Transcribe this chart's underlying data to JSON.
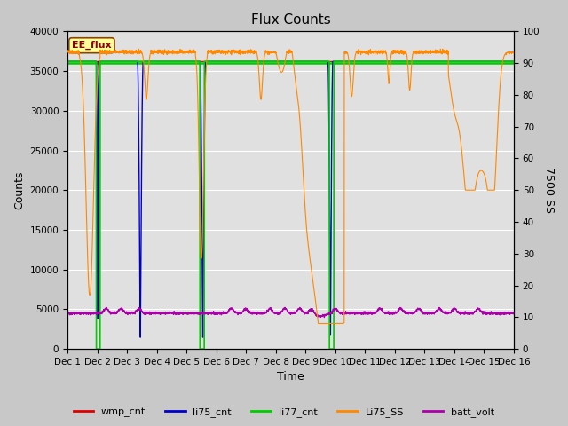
{
  "title": "Flux Counts",
  "xlabel": "Time",
  "ylabel_left": "Counts",
  "ylabel_right": "7500 SS",
  "xlim": [
    0,
    15
  ],
  "ylim_left": [
    0,
    40000
  ],
  "ylim_right": [
    0,
    100
  ],
  "x_tick_labels": [
    "Dec 1",
    "Dec 2",
    "Dec 3",
    "Dec 4",
    "Dec 5",
    "Dec 6",
    "Dec 7",
    "Dec 8",
    "Dec 9",
    "Dec 10",
    "Dec 11",
    "Dec 12",
    "Dec 13",
    "Dec 14",
    "Dec 15",
    "Dec 16"
  ],
  "plot_bg_color": "#e0e0e0",
  "fig_bg_color": "#c8c8c8",
  "ee_flux_label": "EE_flux",
  "ee_flux_box_color": "#ffff99",
  "ee_flux_text_color": "#8b0000",
  "legend_entries": [
    "wmp_cnt",
    "li75_cnt",
    "li77_cnt",
    "Li75_SS",
    "batt_volt"
  ],
  "wmp_cnt_color": "#dd0000",
  "li75_cnt_color": "#0000cc",
  "li77_cnt_color": "#00cc00",
  "Li75_SS_color": "#ff8800",
  "batt_volt_color": "#aa00aa",
  "horizontal_line_color": "#00cc00",
  "horizontal_line_value": 36000,
  "title_fontsize": 11,
  "tick_fontsize": 7.5,
  "axis_label_fontsize": 9
}
